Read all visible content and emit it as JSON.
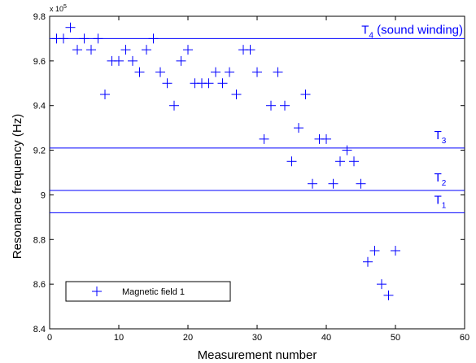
{
  "chart_data": {
    "type": "scatter",
    "xlabel": "Measurement number",
    "ylabel": "Resonance frequency (Hz)",
    "xlim": [
      0,
      60
    ],
    "ylim": [
      8.4,
      9.8
    ],
    "y_multiplier_label": "x 10",
    "y_multiplier_exp": "5",
    "xticks": [
      "0",
      "10",
      "20",
      "30",
      "40",
      "50",
      "60"
    ],
    "yticks": [
      "8.4",
      "8.6",
      "8.8",
      "9",
      "9.2",
      "9.4",
      "9.6",
      "9.8"
    ],
    "grid": false,
    "legend_position": "bottom-left",
    "marker": "plus",
    "color": "#0000ff",
    "series": [
      {
        "name": "Magnetic field 1",
        "points": [
          [
            1,
            9.7
          ],
          [
            2,
            9.7
          ],
          [
            3,
            9.75
          ],
          [
            4,
            9.65
          ],
          [
            5,
            9.7
          ],
          [
            6,
            9.65
          ],
          [
            7,
            9.7
          ],
          [
            8,
            9.45
          ],
          [
            9,
            9.6
          ],
          [
            10,
            9.6
          ],
          [
            11,
            9.65
          ],
          [
            12,
            9.6
          ],
          [
            13,
            9.55
          ],
          [
            14,
            9.65
          ],
          [
            15,
            9.7
          ],
          [
            16,
            9.55
          ],
          [
            17,
            9.5
          ],
          [
            18,
            9.4
          ],
          [
            19,
            9.6
          ],
          [
            20,
            9.65
          ],
          [
            21,
            9.5
          ],
          [
            22,
            9.5
          ],
          [
            23,
            9.5
          ],
          [
            24,
            9.55
          ],
          [
            25,
            9.5
          ],
          [
            26,
            9.55
          ],
          [
            27,
            9.45
          ],
          [
            28,
            9.65
          ],
          [
            29,
            9.65
          ],
          [
            30,
            9.55
          ],
          [
            31,
            9.25
          ],
          [
            32,
            9.4
          ],
          [
            33,
            9.55
          ],
          [
            34,
            9.4
          ],
          [
            35,
            9.15
          ],
          [
            36,
            9.3
          ],
          [
            37,
            9.45
          ],
          [
            38,
            9.05
          ],
          [
            39,
            9.25
          ],
          [
            40,
            9.25
          ],
          [
            41,
            9.05
          ],
          [
            42,
            9.15
          ],
          [
            43,
            9.2
          ],
          [
            44,
            9.15
          ],
          [
            45,
            9.05
          ],
          [
            46,
            8.7
          ],
          [
            47,
            8.75
          ],
          [
            48,
            8.6
          ],
          [
            49,
            8.55
          ],
          [
            50,
            8.75
          ]
        ]
      }
    ],
    "reference_lines": [
      {
        "y": 9.7,
        "label_main": "T",
        "label_sub": "4",
        "label_rest": " (sound winding)"
      },
      {
        "y": 9.21,
        "label_main": "T",
        "label_sub": "3",
        "label_rest": ""
      },
      {
        "y": 9.02,
        "label_main": "T",
        "label_sub": "2",
        "label_rest": ""
      },
      {
        "y": 8.92,
        "label_main": "T",
        "label_sub": "1",
        "label_rest": ""
      }
    ]
  }
}
